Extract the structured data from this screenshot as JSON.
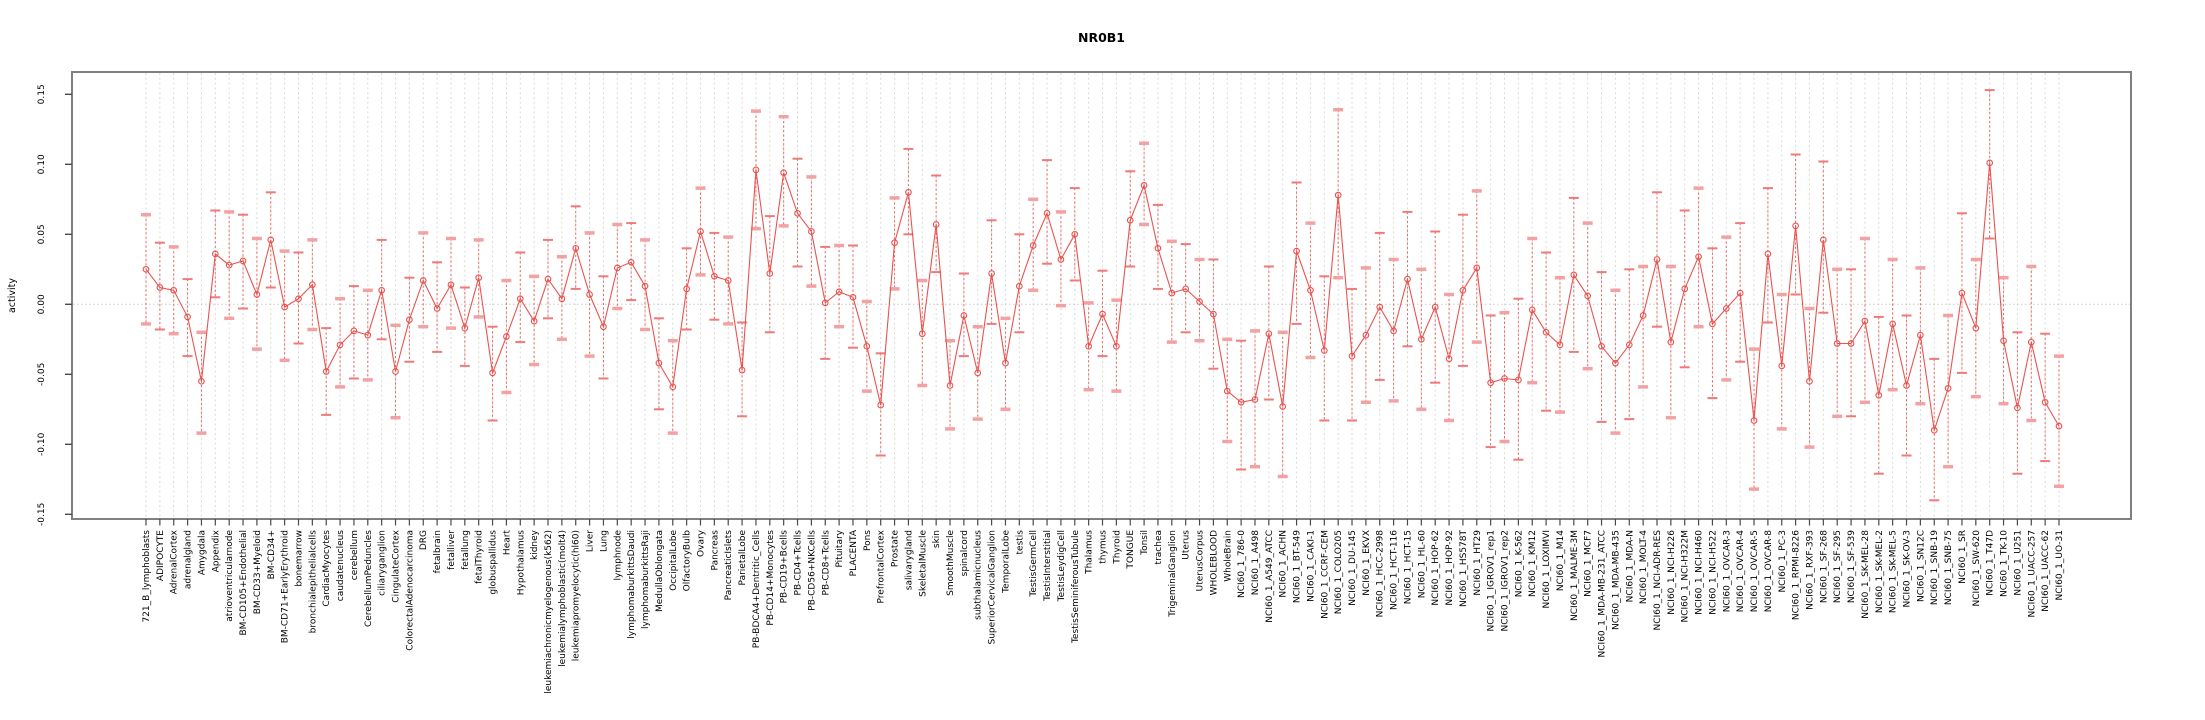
{
  "figure": {
    "title": "NR0B1",
    "ylabel": "activity"
  },
  "style": {
    "point_color": "#e9534f",
    "cap_color_light": "#f2a2a2",
    "cap_color_mid": "#ee7a7a",
    "grid_color": "#dadada",
    "zero_line_color": "#c8c8c8",
    "box_color": "#808080",
    "tick_color": "#4a4a4a"
  },
  "chart_data": {
    "type": "scatter",
    "title": "NR0B1",
    "xlabel": "",
    "ylabel": "activity",
    "ylim": [
      -0.16,
      0.17
    ],
    "yticks": [
      0.15,
      0.1,
      0.05,
      0.0,
      -0.05,
      -0.1,
      -0.15
    ],
    "ytick_labels": [
      "0.15",
      "0.10",
      "0.05",
      "0.00",
      "-0.05",
      "-0.10",
      "-0.15"
    ],
    "grid": "vertical dashed gridline per category; dotted horizontal line at 0",
    "legend": "none",
    "marker": "open-circle with error bars, connected by line",
    "categories": [
      "721_B_lymphoblasts",
      "ADIPOCYTE",
      "AdrenalCortex",
      "adrenalgland",
      "Amygdala",
      "Appendix",
      "atrioventricularnode",
      "BM-CD105+Endothelial",
      "BM-CD33+Myeloid",
      "BM-CD34+",
      "BM-CD71+EarlyErythroid",
      "bonemarrow",
      "bronchialepithelialcells",
      "CardiacMyocytes",
      "caudatenucleus",
      "cerebellum",
      "CerebellumPeduncles",
      "ciliaryganglion",
      "CingulateCortex",
      "ColorectalAdenocarcinoma",
      "DRG",
      "fetalbrain",
      "fetalliver",
      "fetallung",
      "fetalThyroid",
      "globuspallidus",
      "Heart",
      "Hypothalamus",
      "kidney",
      "leukemiachronicmyelogenous(k562)",
      "leukemialymphoblastic(molt4)",
      "leukemiapromyelocytic(hl60)",
      "Liver",
      "Lung",
      "lymphnode",
      "lymphomaburkittsDaudi",
      "lymphomaburkittsRaji",
      "MedullaOblongata",
      "OccipitalLobe",
      "OlfactoryBulb",
      "Ovary",
      "Pancreas",
      "PancreaticIslets",
      "ParietalLobe",
      "PB-BDCA4+Dentritic_Cells",
      "PB-CD14+Monocytes",
      "PB-CD19+Bcells",
      "PB-CD4+Tcells",
      "PB-CD56+NKCells",
      "PB-CD8+Tcells",
      "Pituitary",
      "PLACENTA",
      "Pons",
      "PrefrontalCortex",
      "Prostate",
      "salivarygland",
      "SkeletalMuscle",
      "skin",
      "SmoothMuscle",
      "spinalcord",
      "subthalamicnucleus",
      "SuperiorCervicalGanglion",
      "TemporalLobe",
      "testis",
      "TestisGermCell",
      "TestisInterstitial",
      "TestisLeydigCell",
      "TestisSeminiferousTubule",
      "Thalamus",
      "thymus",
      "Thyroid",
      "TONGUE",
      "Tonsil",
      "trachea",
      "TrigeminalGanglion",
      "Uterus",
      "UterusCorpus",
      "WHOLEBLOOD",
      "WholeBrain",
      "NCI60_1_786-0",
      "NCI60_1_A498",
      "NCI60_1_A549_ATCC",
      "NCI60_1_ACHN",
      "NCI60_1_BT-549",
      "NCI60_1_CAKI-1",
      "NCI60_1_CCRF-CEM",
      "NCI60_1_COLO205",
      "NCI60_1_DU-145",
      "NCI60_1_EKVX",
      "NCI60_1_HCC-2998",
      "NCI60_1_HCT-116",
      "NCI60_1_HCT-15",
      "NCI60_1_HL-60",
      "NCI60_1_HOP-62",
      "NCI60_1_HOP-92",
      "NCI60_1_HS578T",
      "NCI60_1_HT29",
      "NCI60_1_IGROV1_rep1",
      "NCI60_1_IGROV1_rep2",
      "NCI60_1_K-562",
      "NCI60_1_KM12",
      "NCI60_1_LOXIMVI",
      "NCI60_1_M14",
      "NCI60_1_MALME-3M",
      "NCI60_1_MCF7",
      "NCI60_1_MDA-MB-231_ATCC",
      "NCI60_1_MDA-MB-435",
      "NCI60_1_MDA-N",
      "NCI60_1_MOLT-4",
      "NCI60_1_NCI-ADR-RES",
      "NCI60_1_NCI-H226",
      "NCI60_1_NCI-H322M",
      "NCI60_1_NCI-H460",
      "NCI60_1_NCI-H522",
      "NCI60_1_OVCAR-3",
      "NCI60_1_OVCAR-4",
      "NCI60_1_OVCAR-5",
      "NCI60_1_OVCAR-8",
      "NCI60_1_PC-3",
      "NCI60_1_RPMI-8226",
      "NCI60_1_RXF-393",
      "NCI60_1_SF-268",
      "NCI60_1_SF-295",
      "NCI60_1_SF-539",
      "NCI60_1_SK-MEL-28",
      "NCI60_1_SK-MEL-2",
      "NCI60_1_SK-MEL-5",
      "NCI60_1_SK-OV-3",
      "NCI60_1_SN12C",
      "NCI60_1_SNB-19",
      "NCI60_1_SNB-75",
      "NCI60_1_SR",
      "NCI60_1_SW-620",
      "NCI60_1_T47D",
      "NCI60_1_TK-10",
      "NCI60_1_U251",
      "NCI60_1_UACC-257",
      "NCI60_1_UACC-62",
      "NCI60_1_UO-31"
    ],
    "series": [
      {
        "name": "activity",
        "values": [
          0.025,
          0.012,
          0.01,
          -0.009,
          -0.055,
          0.036,
          0.028,
          0.031,
          0.007,
          0.046,
          -0.002,
          0.004,
          0.014,
          -0.048,
          -0.029,
          -0.019,
          -0.022,
          0.01,
          -0.048,
          -0.011,
          0.017,
          -0.003,
          0.014,
          -0.017,
          0.019,
          -0.049,
          -0.023,
          0.004,
          -0.012,
          0.018,
          0.004,
          0.04,
          0.007,
          -0.016,
          0.026,
          0.03,
          0.013,
          -0.042,
          -0.059,
          0.011,
          0.052,
          0.02,
          0.017,
          -0.047,
          0.096,
          0.022,
          0.094,
          0.065,
          0.052,
          0.001,
          0.009,
          0.005,
          -0.03,
          -0.072,
          0.044,
          0.08,
          -0.021,
          0.057,
          -0.058,
          -0.008,
          -0.049,
          0.022,
          -0.042,
          0.013,
          0.042,
          0.065,
          0.032,
          0.05,
          -0.03,
          -0.007,
          -0.03,
          0.06,
          0.085,
          0.04,
          0.008,
          0.011,
          0.002,
          -0.007,
          -0.062,
          -0.07,
          -0.068,
          -0.021,
          -0.073,
          0.038,
          0.01,
          -0.033,
          0.078,
          -0.037,
          -0.022,
          -0.002,
          -0.019,
          0.018,
          -0.025,
          -0.002,
          -0.039,
          0.01,
          0.026,
          -0.056,
          -0.053,
          -0.054,
          -0.004,
          -0.02,
          -0.029,
          0.021,
          0.006,
          -0.03,
          -0.042,
          -0.029,
          -0.008,
          0.032,
          -0.027,
          0.011,
          0.034,
          -0.014,
          -0.003,
          0.008,
          -0.083,
          0.036,
          -0.044,
          0.056,
          -0.055,
          0.046,
          -0.028,
          -0.028,
          -0.012,
          -0.065,
          -0.014,
          -0.058,
          -0.022,
          -0.09,
          -0.06,
          0.008,
          -0.017,
          0.101,
          -0.026,
          -0.074,
          -0.027,
          -0.07,
          -0.087
        ]
      }
    ],
    "error_upper": [
      0.064,
      0.044,
      0.041,
      0.018,
      -0.02,
      0.067,
      0.066,
      0.064,
      0.047,
      0.08,
      0.038,
      0.037,
      0.046,
      -0.017,
      0.004,
      0.013,
      0.01,
      0.046,
      -0.015,
      0.019,
      0.051,
      0.03,
      0.047,
      0.012,
      0.046,
      -0.016,
      0.017,
      0.037,
      0.02,
      0.046,
      0.034,
      0.07,
      0.051,
      0.02,
      0.057,
      0.058,
      0.046,
      -0.01,
      -0.026,
      0.04,
      0.083,
      0.051,
      0.048,
      -0.013,
      0.138,
      0.063,
      0.134,
      0.104,
      0.091,
      0.041,
      0.042,
      0.042,
      0.002,
      -0.035,
      0.076,
      0.111,
      0.017,
      0.092,
      -0.026,
      0.022,
      -0.016,
      0.06,
      -0.01,
      0.05,
      0.075,
      0.103,
      0.066,
      0.083,
      0.001,
      0.024,
      0.003,
      0.095,
      0.115,
      0.071,
      0.045,
      0.043,
      0.032,
      0.032,
      -0.025,
      -0.026,
      -0.019,
      0.027,
      -0.02,
      0.087,
      0.058,
      0.02,
      0.139,
      0.011,
      0.026,
      0.051,
      0.032,
      0.066,
      0.025,
      0.052,
      0.007,
      0.064,
      0.081,
      -0.008,
      -0.006,
      0.004,
      0.047,
      0.037,
      0.019,
      0.076,
      0.058,
      0.023,
      0.01,
      0.025,
      0.027,
      0.08,
      0.027,
      0.067,
      0.083,
      0.04,
      0.048,
      0.058,
      -0.032,
      0.083,
      0.007,
      0.107,
      -0.003,
      0.102,
      0.025,
      0.025,
      0.047,
      -0.009,
      0.032,
      -0.008,
      0.026,
      -0.039,
      -0.008,
      0.065,
      0.032,
      0.153,
      0.019,
      -0.02,
      0.027,
      -0.021,
      -0.037
    ],
    "error_lower": [
      -0.014,
      -0.018,
      -0.021,
      -0.037,
      -0.092,
      0.005,
      -0.01,
      -0.003,
      -0.032,
      0.012,
      -0.04,
      -0.028,
      -0.018,
      -0.079,
      -0.059,
      -0.053,
      -0.054,
      -0.025,
      -0.081,
      -0.041,
      -0.016,
      -0.034,
      -0.017,
      -0.044,
      -0.009,
      -0.083,
      -0.063,
      -0.027,
      -0.043,
      -0.01,
      -0.025,
      0.011,
      -0.037,
      -0.053,
      -0.003,
      0.003,
      -0.018,
      -0.075,
      -0.092,
      -0.018,
      0.021,
      -0.011,
      -0.014,
      -0.08,
      0.054,
      -0.02,
      0.056,
      0.027,
      0.013,
      -0.039,
      -0.016,
      -0.031,
      -0.062,
      -0.108,
      0.011,
      0.05,
      -0.058,
      0.023,
      -0.089,
      -0.037,
      -0.082,
      -0.014,
      -0.075,
      -0.02,
      0.01,
      0.029,
      -0.001,
      0.017,
      -0.061,
      -0.037,
      -0.062,
      0.027,
      0.057,
      0.011,
      -0.027,
      -0.02,
      -0.026,
      -0.046,
      -0.098,
      -0.118,
      -0.116,
      -0.068,
      -0.123,
      -0.014,
      -0.038,
      -0.083,
      0.019,
      -0.083,
      -0.07,
      -0.054,
      -0.069,
      -0.03,
      -0.075,
      -0.056,
      -0.083,
      -0.044,
      -0.027,
      -0.102,
      -0.098,
      -0.111,
      -0.056,
      -0.076,
      -0.077,
      -0.034,
      -0.046,
      -0.084,
      -0.092,
      -0.082,
      -0.059,
      -0.016,
      -0.081,
      -0.045,
      -0.016,
      -0.067,
      -0.054,
      -0.041,
      -0.132,
      -0.013,
      -0.089,
      0.007,
      -0.102,
      -0.006,
      -0.08,
      -0.08,
      -0.07,
      -0.121,
      -0.061,
      -0.108,
      -0.071,
      -0.14,
      -0.116,
      -0.049,
      -0.066,
      0.047,
      -0.071,
      -0.121,
      -0.083,
      -0.112,
      -0.13
    ]
  }
}
